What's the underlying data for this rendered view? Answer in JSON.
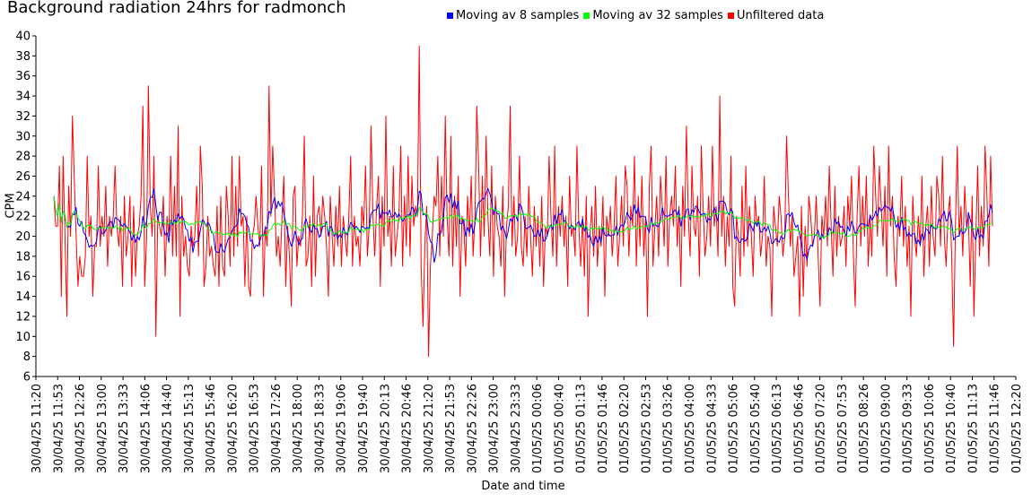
{
  "chart_data": {
    "type": "line",
    "title": "Background radiation 24hrs for radmonch",
    "xlabel": "Date and time",
    "ylabel": "CPM",
    "ylim": [
      6,
      40
    ],
    "yticks": [
      6,
      8,
      10,
      12,
      14,
      16,
      18,
      20,
      22,
      24,
      26,
      28,
      30,
      32,
      34,
      36,
      38,
      40
    ],
    "xticks": [
      "30/04/25 11:20",
      "30/04/25 11:53",
      "30/04/25 12:26",
      "30/04/25 13:00",
      "30/04/25 13:33",
      "30/04/25 14:06",
      "30/04/25 14:40",
      "30/04/25 15:13",
      "30/04/25 15:46",
      "30/04/25 16:20",
      "30/04/25 16:53",
      "30/04/25 17:26",
      "30/04/25 18:00",
      "30/04/25 18:33",
      "30/04/25 19:06",
      "30/04/25 19:40",
      "30/04/25 20:13",
      "30/04/25 20:46",
      "30/04/25 21:20",
      "30/04/25 21:53",
      "30/04/25 22:26",
      "30/04/25 23:00",
      "30/04/25 23:33",
      "01/05/25 00:06",
      "01/05/25 00:40",
      "01/05/25 01:13",
      "01/05/25 01:46",
      "01/05/25 02:20",
      "01/05/25 02:53",
      "01/05/25 03:26",
      "01/05/25 04:00",
      "01/05/25 04:33",
      "01/05/25 05:06",
      "01/05/25 05:40",
      "01/05/25 06:13",
      "01/05/25 06:46",
      "01/05/25 07:20",
      "01/05/25 07:53",
      "01/05/25 08:26",
      "01/05/25 09:00",
      "01/05/25 09:33",
      "01/05/25 10:06",
      "01/05/25 10:40",
      "01/05/25 11:13",
      "01/05/25 11:46",
      "01/05/25 12:20"
    ],
    "grid": false,
    "legend_position": "top",
    "series": [
      {
        "name": "Moving av 8 samples",
        "color": "#0000ff",
        "values": []
      },
      {
        "name": "Moving av 32 samples",
        "color": "#00ff00",
        "values": []
      },
      {
        "name": "Unfiltered data",
        "color": "#ff0000",
        "values": [
          24,
          21,
          21,
          27,
          14,
          28,
          20,
          12,
          25,
          20,
          32,
          26,
          20,
          15,
          18,
          16,
          16,
          18,
          28,
          20,
          22,
          14,
          19,
          19,
          27,
          19,
          22,
          20,
          25,
          17,
          22,
          20,
          22,
          27,
          21,
          19,
          22,
          15,
          24,
          18,
          20,
          24,
          15,
          23,
          16,
          20,
          21,
          24,
          33,
          15,
          20,
          35,
          23,
          20,
          28,
          10,
          22,
          21,
          20,
          24,
          16,
          22,
          20,
          28,
          18,
          25,
          18,
          31,
          12,
          24,
          18,
          20,
          17,
          16,
          21,
          19,
          20,
          25,
          18,
          29,
          25,
          15,
          17,
          22,
          18,
          19,
          17,
          16,
          23,
          15,
          24,
          17,
          16,
          25,
          22,
          17,
          28,
          18,
          25,
          19,
          28,
          21,
          22,
          15,
          22,
          15,
          14,
          20,
          21,
          24,
          21,
          19,
          27,
          14,
          21,
          19,
          35,
          22,
          29,
          24,
          18,
          20,
          17,
          22,
          26,
          15,
          21,
          18,
          13,
          24,
          25,
          17,
          20,
          19,
          22,
          30,
          17,
          18,
          22,
          15,
          26,
          16,
          22,
          23,
          20,
          24,
          22,
          19,
          14,
          24,
          20,
          17,
          23,
          19,
          25,
          17,
          22,
          20,
          18,
          22,
          28,
          17,
          22,
          19,
          20,
          17,
          23,
          21,
          27,
          18,
          21,
          31,
          22,
          18,
          23,
          26,
          15,
          24,
          19,
          32,
          20,
          22,
          17,
          27,
          18,
          20,
          22,
          29,
          17,
          24,
          19,
          28,
          18,
          26,
          21,
          23,
          22,
          39,
          17,
          11,
          19,
          23,
          8,
          17,
          20,
          24,
          23,
          28,
          18,
          26,
          20,
          32,
          22,
          18,
          30,
          17,
          24,
          19,
          26,
          14,
          22,
          21,
          17,
          24,
          20,
          26,
          18,
          22,
          33,
          27,
          18,
          26,
          20,
          30,
          22,
          18,
          27,
          16,
          24,
          21,
          20,
          17,
          25,
          14,
          21,
          23,
          33,
          19,
          24,
          18,
          20,
          28,
          19,
          17,
          22,
          18,
          25,
          20,
          16,
          23,
          19,
          22,
          17,
          24,
          15,
          21,
          20,
          28,
          22,
          18,
          29,
          17,
          23,
          20,
          24,
          19,
          22,
          15,
          26,
          20,
          21,
          18,
          29,
          21,
          17,
          22,
          16,
          24,
          12,
          20,
          23,
          18,
          25,
          17,
          21,
          19,
          24,
          14,
          22,
          20,
          23,
          18,
          21,
          26,
          17,
          20,
          24,
          19,
          27,
          25,
          18,
          23,
          21,
          28,
          17,
          24,
          19,
          26,
          18,
          22,
          12,
          25,
          29,
          17,
          21,
          24,
          18,
          26,
          23,
          19,
          28,
          17,
          22,
          24,
          21,
          27,
          19,
          23,
          15,
          25,
          20,
          31,
          22,
          18,
          27,
          21,
          20,
          24,
          16,
          29,
          23,
          18,
          20,
          24,
          19,
          29,
          21,
          23,
          18,
          34,
          20,
          24,
          17,
          22,
          19,
          28,
          15,
          13,
          22,
          20,
          16,
          25,
          18,
          27,
          19,
          23,
          20,
          16,
          24,
          21,
          22,
          18,
          20,
          26,
          17,
          20,
          19,
          12,
          23,
          21,
          19,
          24,
          22,
          18,
          20,
          30,
          24,
          19,
          22,
          16,
          18,
          20,
          12,
          23,
          14,
          21,
          17,
          24,
          22,
          19,
          20,
          24,
          18,
          13,
          22,
          20,
          24,
          19,
          27,
          21,
          16,
          25,
          18,
          22,
          19,
          20,
          23,
          17,
          24,
          21,
          26,
          18,
          13,
          22,
          27,
          19,
          24,
          20,
          26,
          17,
          22,
          18,
          29,
          24,
          20,
          27,
          23,
          19,
          25,
          16,
          29,
          21,
          24,
          18,
          15,
          22,
          20,
          26,
          19,
          23,
          17,
          21,
          12,
          24,
          20,
          18,
          22,
          19,
          26,
          16,
          21,
          23,
          17,
          25,
          20,
          18,
          26,
          24,
          19,
          28,
          20,
          17,
          22,
          24,
          18,
          9,
          21,
          29,
          20,
          23,
          18,
          25,
          21,
          22,
          15,
          24,
          12,
          20,
          27,
          18,
          23,
          19,
          29,
          24,
          17,
          28,
          21
        ]
      }
    ]
  },
  "legend": {
    "item1": "Moving av 8 samples",
    "item2": "Moving av 32 samples",
    "item3": "Unfiltered data"
  },
  "labels": {
    "title": "Background radiation 24hrs for radmonch",
    "xlabel": "Date and time",
    "ylabel": "CPM"
  }
}
